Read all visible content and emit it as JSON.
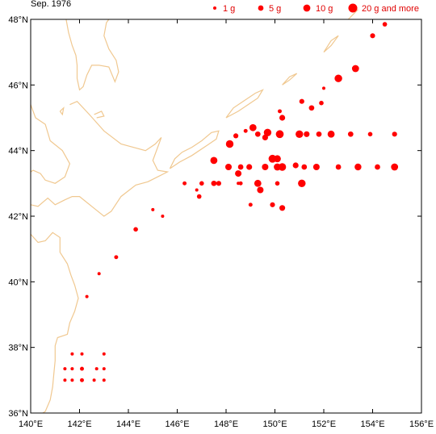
{
  "period_label": "Sep. 1976",
  "colors": {
    "marker": "#ff0000",
    "coast": "#f0c890",
    "frame": "#000000",
    "legend_text": "#e00000"
  },
  "legend": [
    {
      "label": "1 g",
      "size_g": 1
    },
    {
      "label": "5 g",
      "size_g": 5
    },
    {
      "label": "10 g",
      "size_g": 10
    },
    {
      "label": "20 g and more",
      "size_g": 20
    }
  ],
  "axes": {
    "x_range": [
      140,
      156
    ],
    "y_range": [
      36,
      48
    ],
    "x_ticks": [
      {
        "value": 140,
        "label": "140°E"
      },
      {
        "value": 142,
        "label": "142°E"
      },
      {
        "value": 144,
        "label": "144°E"
      },
      {
        "value": 146,
        "label": "146°E"
      },
      {
        "value": 148,
        "label": "148°E"
      },
      {
        "value": 150,
        "label": "150°E"
      },
      {
        "value": 152,
        "label": "152°E"
      },
      {
        "value": 154,
        "label": "154°E"
      },
      {
        "value": 156,
        "label": "156°E"
      }
    ],
    "y_ticks": [
      {
        "value": 36,
        "label": "36°N"
      },
      {
        "value": 38,
        "label": "38°N"
      },
      {
        "value": 40,
        "label": "40°N"
      },
      {
        "value": 42,
        "label": "42°N"
      },
      {
        "value": 44,
        "label": "44°N"
      },
      {
        "value": 46,
        "label": "46°N"
      },
      {
        "value": 48,
        "label": "48°N"
      }
    ]
  },
  "chart_data": {
    "type": "scatter",
    "x_unit": "longitude (°E)",
    "y_unit": "latitude (°N)",
    "size_unit": "g",
    "points": [
      {
        "lon": 154.5,
        "lat": 47.85,
        "g": 3
      },
      {
        "lon": 154.0,
        "lat": 47.5,
        "g": 4
      },
      {
        "lon": 153.3,
        "lat": 46.5,
        "g": 10
      },
      {
        "lon": 152.6,
        "lat": 46.2,
        "g": 12
      },
      {
        "lon": 152.0,
        "lat": 45.9,
        "g": 1
      },
      {
        "lon": 151.9,
        "lat": 45.45,
        "g": 3
      },
      {
        "lon": 151.1,
        "lat": 45.5,
        "g": 4
      },
      {
        "lon": 151.5,
        "lat": 45.3,
        "g": 5
      },
      {
        "lon": 150.2,
        "lat": 45.2,
        "g": 2
      },
      {
        "lon": 150.3,
        "lat": 45.0,
        "g": 6
      },
      {
        "lon": 149.1,
        "lat": 44.7,
        "g": 10
      },
      {
        "lon": 149.7,
        "lat": 44.55,
        "g": 12
      },
      {
        "lon": 150.2,
        "lat": 44.5,
        "g": 13
      },
      {
        "lon": 149.3,
        "lat": 44.5,
        "g": 5
      },
      {
        "lon": 148.8,
        "lat": 44.6,
        "g": 2
      },
      {
        "lon": 149.6,
        "lat": 44.4,
        "g": 6
      },
      {
        "lon": 148.4,
        "lat": 44.45,
        "g": 4
      },
      {
        "lon": 148.15,
        "lat": 44.2,
        "g": 12
      },
      {
        "lon": 151.0,
        "lat": 44.5,
        "g": 12
      },
      {
        "lon": 151.3,
        "lat": 44.5,
        "g": 6
      },
      {
        "lon": 151.8,
        "lat": 44.5,
        "g": 5
      },
      {
        "lon": 152.3,
        "lat": 44.5,
        "g": 10
      },
      {
        "lon": 153.1,
        "lat": 44.5,
        "g": 5
      },
      {
        "lon": 153.9,
        "lat": 44.5,
        "g": 3
      },
      {
        "lon": 154.9,
        "lat": 44.5,
        "g": 4
      },
      {
        "lon": 147.5,
        "lat": 43.7,
        "g": 10
      },
      {
        "lon": 149.9,
        "lat": 43.75,
        "g": 13
      },
      {
        "lon": 150.1,
        "lat": 43.75,
        "g": 10
      },
      {
        "lon": 148.1,
        "lat": 43.5,
        "g": 8
      },
      {
        "lon": 148.6,
        "lat": 43.5,
        "g": 5
      },
      {
        "lon": 148.95,
        "lat": 43.5,
        "g": 6
      },
      {
        "lon": 149.6,
        "lat": 43.5,
        "g": 8
      },
      {
        "lon": 150.1,
        "lat": 43.5,
        "g": 10
      },
      {
        "lon": 150.3,
        "lat": 43.5,
        "g": 12
      },
      {
        "lon": 150.85,
        "lat": 43.55,
        "g": 6
      },
      {
        "lon": 151.2,
        "lat": 43.5,
        "g": 5
      },
      {
        "lon": 151.7,
        "lat": 43.5,
        "g": 8
      },
      {
        "lon": 152.6,
        "lat": 43.5,
        "g": 5
      },
      {
        "lon": 153.4,
        "lat": 43.5,
        "g": 9
      },
      {
        "lon": 154.2,
        "lat": 43.5,
        "g": 5
      },
      {
        "lon": 154.9,
        "lat": 43.5,
        "g": 10
      },
      {
        "lon": 148.5,
        "lat": 43.3,
        "g": 8
      },
      {
        "lon": 147.0,
        "lat": 43.0,
        "g": 3
      },
      {
        "lon": 147.5,
        "lat": 43.0,
        "g": 5
      },
      {
        "lon": 147.7,
        "lat": 43.0,
        "g": 4
      },
      {
        "lon": 148.6,
        "lat": 43.0,
        "g": 2
      },
      {
        "lon": 149.3,
        "lat": 43.0,
        "g": 10
      },
      {
        "lon": 149.4,
        "lat": 42.8,
        "g": 8
      },
      {
        "lon": 150.1,
        "lat": 43.0,
        "g": 3
      },
      {
        "lon": 151.1,
        "lat": 43.0,
        "g": 12
      },
      {
        "lon": 146.3,
        "lat": 43.0,
        "g": 2
      },
      {
        "lon": 146.8,
        "lat": 42.8,
        "g": 1
      },
      {
        "lon": 146.9,
        "lat": 42.6,
        "g": 3
      },
      {
        "lon": 148.5,
        "lat": 43.0,
        "g": 1
      },
      {
        "lon": 149.0,
        "lat": 42.35,
        "g": 2
      },
      {
        "lon": 149.9,
        "lat": 42.35,
        "g": 4
      },
      {
        "lon": 150.3,
        "lat": 42.25,
        "g": 6
      },
      {
        "lon": 145.0,
        "lat": 42.2,
        "g": 1
      },
      {
        "lon": 145.4,
        "lat": 42.0,
        "g": 1
      },
      {
        "lon": 144.3,
        "lat": 41.6,
        "g": 3
      },
      {
        "lon": 143.5,
        "lat": 40.75,
        "g": 2
      },
      {
        "lon": 142.8,
        "lat": 40.25,
        "g": 1
      },
      {
        "lon": 142.3,
        "lat": 39.55,
        "g": 1
      },
      {
        "lon": 141.7,
        "lat": 37.8,
        "g": 1
      },
      {
        "lon": 142.1,
        "lat": 37.8,
        "g": 1
      },
      {
        "lon": 143.0,
        "lat": 37.8,
        "g": 1
      },
      {
        "lon": 141.4,
        "lat": 37.35,
        "g": 1
      },
      {
        "lon": 141.7,
        "lat": 37.35,
        "g": 1
      },
      {
        "lon": 142.1,
        "lat": 37.35,
        "g": 2
      },
      {
        "lon": 142.7,
        "lat": 37.35,
        "g": 1
      },
      {
        "lon": 143.0,
        "lat": 37.35,
        "g": 1
      },
      {
        "lon": 141.4,
        "lat": 37.0,
        "g": 1
      },
      {
        "lon": 141.7,
        "lat": 37.0,
        "g": 1
      },
      {
        "lon": 142.1,
        "lat": 37.0,
        "g": 2
      },
      {
        "lon": 142.6,
        "lat": 37.0,
        "g": 1
      },
      {
        "lon": 143.0,
        "lat": 37.0,
        "g": 1
      }
    ]
  },
  "coastlines": [
    [
      [
        141.45,
        48.0
      ],
      [
        141.55,
        47.6
      ],
      [
        141.7,
        47.2
      ],
      [
        141.85,
        46.9
      ],
      [
        141.9,
        46.6
      ],
      [
        141.9,
        46.2
      ],
      [
        142.0,
        45.85
      ],
      [
        142.15,
        45.95
      ],
      [
        142.3,
        46.3
      ],
      [
        142.5,
        46.6
      ],
      [
        142.8,
        46.6
      ],
      [
        143.2,
        46.55
      ],
      [
        143.45,
        46.1
      ],
      [
        143.6,
        46.4
      ],
      [
        143.5,
        46.75
      ],
      [
        143.2,
        47.1
      ],
      [
        143.0,
        47.5
      ],
      [
        143.1,
        47.9
      ],
      [
        143.2,
        48.0
      ]
    ],
    [
      [
        140.0,
        45.4
      ],
      [
        140.2,
        45.0
      ],
      [
        140.6,
        44.8
      ],
      [
        140.8,
        44.3
      ],
      [
        141.3,
        44.0
      ],
      [
        141.6,
        43.6
      ],
      [
        141.4,
        43.2
      ],
      [
        141.0,
        43.0
      ],
      [
        140.6,
        43.1
      ],
      [
        140.4,
        43.3
      ],
      [
        140.1,
        43.4
      ],
      [
        140.0,
        43.35
      ]
    ],
    [
      [
        141.6,
        45.4
      ],
      [
        141.9,
        45.5
      ],
      [
        142.4,
        45.1
      ],
      [
        143.0,
        44.6
      ],
      [
        143.7,
        44.2
      ],
      [
        144.2,
        44.1
      ],
      [
        144.7,
        44.0
      ],
      [
        145.1,
        44.2
      ],
      [
        145.35,
        44.4
      ],
      [
        145.0,
        43.7
      ],
      [
        145.2,
        43.4
      ],
      [
        145.6,
        43.35
      ],
      [
        145.2,
        43.2
      ],
      [
        144.8,
        43.05
      ],
      [
        144.3,
        42.95
      ],
      [
        143.7,
        42.6
      ],
      [
        143.3,
        42.15
      ],
      [
        143.0,
        42.0
      ],
      [
        142.5,
        42.3
      ],
      [
        142.0,
        42.6
      ],
      [
        141.7,
        42.6
      ],
      [
        141.4,
        42.5
      ],
      [
        141.0,
        42.35
      ],
      [
        140.7,
        42.55
      ],
      [
        140.3,
        42.3
      ],
      [
        140.0,
        42.35
      ]
    ],
    [
      [
        140.0,
        41.45
      ],
      [
        140.3,
        41.2
      ],
      [
        140.6,
        41.25
      ],
      [
        140.9,
        41.5
      ],
      [
        141.2,
        41.35
      ],
      [
        141.2,
        40.9
      ],
      [
        141.5,
        40.55
      ],
      [
        141.65,
        40.2
      ],
      [
        141.8,
        39.9
      ],
      [
        141.95,
        39.5
      ],
      [
        141.8,
        39.1
      ],
      [
        141.6,
        38.75
      ],
      [
        141.5,
        38.4
      ],
      [
        141.1,
        38.3
      ],
      [
        141.0,
        38.05
      ],
      [
        141.0,
        37.6
      ],
      [
        140.95,
        37.2
      ],
      [
        140.9,
        36.8
      ],
      [
        140.8,
        36.4
      ],
      [
        140.6,
        36.05
      ],
      [
        140.5,
        36.0
      ]
    ],
    [
      [
        145.7,
        43.45
      ],
      [
        146.1,
        43.65
      ],
      [
        146.6,
        43.85
      ],
      [
        147.2,
        44.15
      ],
      [
        147.6,
        44.35
      ],
      [
        147.7,
        44.6
      ],
      [
        147.4,
        44.55
      ],
      [
        147.0,
        44.3
      ],
      [
        146.6,
        44.1
      ],
      [
        146.2,
        43.95
      ],
      [
        145.9,
        43.75
      ],
      [
        145.7,
        43.45
      ]
    ],
    [
      [
        148.0,
        45.0
      ],
      [
        148.5,
        45.2
      ],
      [
        148.9,
        45.4
      ],
      [
        149.3,
        45.6
      ],
      [
        149.5,
        45.85
      ],
      [
        149.2,
        45.75
      ],
      [
        148.8,
        45.55
      ],
      [
        148.3,
        45.3
      ],
      [
        148.0,
        45.0
      ]
    ],
    [
      [
        150.3,
        46.0
      ],
      [
        150.6,
        46.15
      ],
      [
        150.9,
        46.35
      ],
      [
        150.6,
        46.25
      ],
      [
        150.3,
        46.0
      ]
    ],
    [
      [
        152.0,
        47.0
      ],
      [
        152.3,
        47.2
      ],
      [
        152.6,
        47.5
      ],
      [
        152.3,
        47.35
      ],
      [
        152.0,
        47.0
      ]
    ],
    [
      [
        153.0,
        48.0
      ],
      [
        153.2,
        48.15
      ],
      [
        153.4,
        48.3
      ]
    ],
    [
      [
        142.6,
        45.1
      ],
      [
        142.9,
        45.2
      ],
      [
        143.0,
        45.05
      ],
      [
        142.7,
        45.0
      ]
    ],
    [
      [
        141.2,
        45.2
      ],
      [
        141.35,
        45.3
      ],
      [
        141.3,
        45.1
      ],
      [
        141.2,
        45.2
      ]
    ]
  ]
}
